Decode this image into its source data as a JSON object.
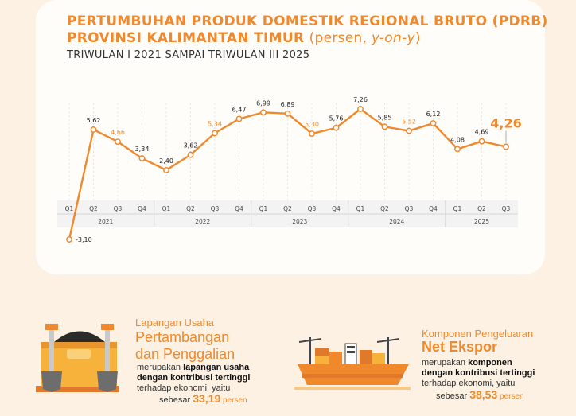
{
  "title_line1": "PERTUMBUHAN PRODUK DOMESTIK REGIONAL BRUTO (PDRB)",
  "title_line2_main": "PROVINSI KALIMANTAN TIMUR",
  "title_line2_paren_open": "(persen, ",
  "title_line2_italic": "y-on-y",
  "title_line2_paren_close": ")",
  "subtitle": "TRIWULAN I 2021 SAMPAI TRIWULAN III 2025",
  "colors": {
    "accent": "#f0892c",
    "text": "#333333",
    "background": "#fdf1e3"
  },
  "chart_data": {
    "type": "line",
    "years": [
      "2021",
      "2022",
      "2023",
      "2024",
      "2025"
    ],
    "x": [
      "Q1",
      "Q2",
      "Q3",
      "Q4",
      "Q1",
      "Q2",
      "Q3",
      "Q4",
      "Q1",
      "Q2",
      "Q3",
      "Q4",
      "Q1",
      "Q2",
      "Q3",
      "Q4",
      "Q1",
      "Q2",
      "Q3"
    ],
    "values": [
      -3.1,
      5.62,
      4.66,
      3.34,
      2.4,
      3.62,
      5.34,
      6.47,
      6.99,
      6.89,
      5.3,
      5.76,
      7.26,
      5.85,
      5.52,
      6.12,
      4.08,
      4.69,
      4.26
    ],
    "labels": [
      "-3,10",
      "5,62",
      "4,66",
      "3,34",
      "2,40",
      "3,62",
      "5,34",
      "6,47",
      "6,99",
      "6,89",
      "5,30",
      "5,76",
      "7,26",
      "5,85",
      "5,52",
      "6,12",
      "4,08",
      "4,69",
      "4,26"
    ],
    "ylim": [
      -3.1,
      7.26
    ]
  },
  "info_left": {
    "small": "Lapangan Usaha",
    "big_line1": "Pertambangan",
    "big_line2": "dan Penggalian",
    "desc_pre": "merupakan ",
    "desc_bold1": "lapangan usaha",
    "desc_bold2": "dengan kontribusi tertinggi",
    "desc_line3": "terhadap ekonomi, yaitu",
    "value_pre": "sebesar ",
    "value": "33,19",
    "value_unit": " persen"
  },
  "info_right": {
    "small": "Komponen Pengeluaran",
    "big": "Net Ekspor",
    "desc_pre": "merupakan ",
    "desc_bold1": "komponen",
    "desc_bold2": "dengan kontribusi tertinggi",
    "desc_line3": "terhadap ekonomi, yaitu",
    "value_pre": "sebesar ",
    "value": "38,53",
    "value_unit": " persen"
  }
}
